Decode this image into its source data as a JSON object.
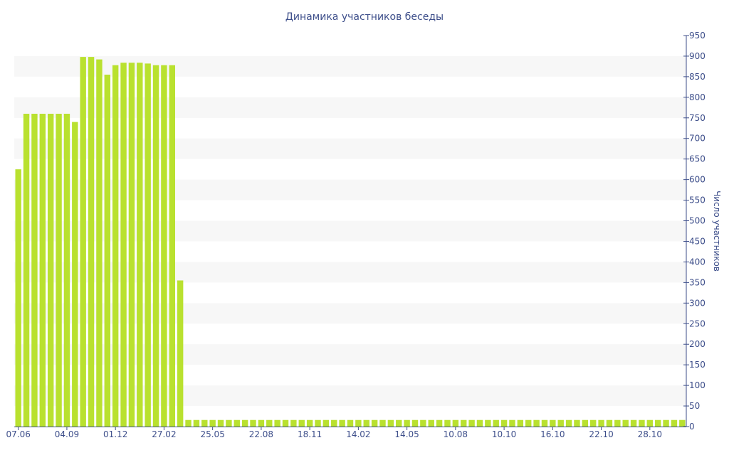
{
  "chart_data": {
    "type": "bar",
    "title": "Динамика участников беседы",
    "xlabel": "",
    "ylabel": "Число участников",
    "ylim": [
      0,
      950
    ],
    "y_ticks": [
      0,
      50,
      100,
      150,
      200,
      250,
      300,
      350,
      400,
      450,
      500,
      550,
      600,
      650,
      700,
      750,
      800,
      850,
      900,
      950
    ],
    "grid": "horizontal alternating bands",
    "y_axis_position": "right",
    "bar_color": "#b9e12f",
    "band_color": "#f7f7f7",
    "axis_color": "#3d4e8a",
    "x_tick_labels": [
      {
        "label": "07.06",
        "index": 0
      },
      {
        "label": "04.09",
        "index": 6
      },
      {
        "label": "01.12",
        "index": 12
      },
      {
        "label": "27.02",
        "index": 18
      },
      {
        "label": "25.05",
        "index": 24
      },
      {
        "label": "22.08",
        "index": 30
      },
      {
        "label": "18.11",
        "index": 36
      },
      {
        "label": "14.02",
        "index": 42
      },
      {
        "label": "14.05",
        "index": 48
      },
      {
        "label": "10.08",
        "index": 54
      },
      {
        "label": "10.10",
        "index": 60
      },
      {
        "label": "16.10",
        "index": 66
      },
      {
        "label": "22.10",
        "index": 72
      },
      {
        "label": "28.10",
        "index": 78
      }
    ],
    "values": [
      625,
      760,
      760,
      760,
      760,
      760,
      760,
      740,
      898,
      898,
      892,
      855,
      878,
      884,
      884,
      884,
      882,
      878,
      878,
      878,
      355,
      16,
      16,
      16,
      16,
      16,
      16,
      16,
      16,
      16,
      16,
      16,
      16,
      16,
      16,
      16,
      16,
      16,
      16,
      16,
      16,
      16,
      16,
      16,
      16,
      16,
      16,
      16,
      16,
      16,
      16,
      16,
      16,
      16,
      16,
      16,
      16,
      16,
      16,
      16,
      16,
      16,
      16,
      16,
      16,
      16,
      16,
      16,
      16,
      16,
      16,
      16,
      16,
      16,
      16,
      16,
      16,
      16,
      16,
      16,
      16,
      16,
      16
    ]
  }
}
